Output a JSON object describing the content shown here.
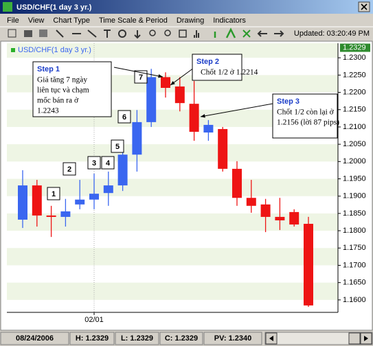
{
  "window": {
    "title": "USD/CHF(1 day 3 yr.)"
  },
  "menu": [
    "File",
    "View",
    "Chart Type",
    "Time Scale & Period",
    "Drawing",
    "Indicators"
  ],
  "toolbar": {
    "updated": "Updated: 03:20:49 PM"
  },
  "chart_data": {
    "type": "candlestick",
    "legend": "USD/CHF(1 day 3 yr.)",
    "last_price": 1.2329,
    "categories": [
      null,
      null,
      null,
      null,
      null,
      "02/01",
      null,
      null,
      null,
      null,
      null,
      null,
      null,
      null,
      null,
      null,
      null,
      null,
      null,
      null,
      null
    ],
    "open": [
      1.1832,
      1.1931,
      1.1844,
      1.184,
      1.1876,
      1.189,
      1.1909,
      1.1931,
      1.202,
      1.2114,
      1.2244,
      1.2217,
      1.2167,
      1.2084,
      1.2094,
      1.1979,
      1.1895,
      1.1876,
      1.184,
      1.1854,
      1.182
    ],
    "high": [
      1.1975,
      1.1947,
      1.1872,
      1.1892,
      1.1947,
      1.1965,
      1.1971,
      1.206,
      1.2149,
      1.2268,
      1.2258,
      1.2244,
      1.2233,
      1.212,
      1.21,
      1.2001,
      1.1947,
      1.1892,
      1.1895,
      1.1862,
      1.184
    ],
    "low": [
      1.1808,
      1.1812,
      1.1782,
      1.1812,
      1.1862,
      1.1862,
      1.1872,
      1.1915,
      1.1971,
      1.21,
      1.2185,
      1.2145,
      1.206,
      1.206,
      1.1971,
      1.1872,
      1.1852,
      1.1796,
      1.1802,
      1.1812,
      1.158
    ],
    "close": [
      1.1931,
      1.1844,
      1.184,
      1.1856,
      1.189,
      1.1907,
      1.1931,
      1.202,
      1.2114,
      1.2244,
      1.2213,
      1.2169,
      1.2086,
      1.2106,
      1.1979,
      1.1895,
      1.1872,
      1.184,
      1.183,
      1.1818,
      1.1584
    ],
    "up_color": "#3a66f0",
    "down_color": "#ee1414",
    "ylim": [
      1.1564,
      1.2342
    ],
    "yticks": [
      {
        "value": 1.16,
        "label": "1.1600"
      },
      {
        "value": 1.165,
        "label": "1.1650"
      },
      {
        "value": 1.17,
        "label": "1.1700"
      },
      {
        "value": 1.175,
        "label": "1.1750"
      },
      {
        "value": 1.18,
        "label": "1.1800"
      },
      {
        "value": 1.185,
        "label": "1.1850"
      },
      {
        "value": 1.19,
        "label": "1.1900"
      },
      {
        "value": 1.195,
        "label": "1.1950"
      },
      {
        "value": 1.2,
        "label": "1.2000"
      },
      {
        "value": 1.205,
        "label": "1.2050"
      },
      {
        "value": 1.21,
        "label": "1.2100"
      },
      {
        "value": 1.215,
        "label": "1.2150"
      },
      {
        "value": 1.22,
        "label": "1.2200"
      },
      {
        "value": 1.225,
        "label": "1.2250"
      },
      {
        "value": 1.23,
        "label": "1.2300"
      }
    ],
    "grid": true,
    "markers": [
      "1",
      "2",
      "3",
      "4",
      "5",
      "6",
      "7"
    ],
    "steps": [
      {
        "title": "Step 1",
        "lines": [
          "Giá tăng 7 ngày",
          "liên tục và chạm",
          "mốc  bán ra    ở",
          "1.2243"
        ]
      },
      {
        "title": "Step 2",
        "lines": [
          "Chốt 1/2 ở 1.2214"
        ]
      },
      {
        "title": "Step 3",
        "lines": [
          "Chốt 1/2 còn lại ở",
          "1.2156 (lời 87 pips)"
        ]
      }
    ]
  },
  "status": [
    "08/24/2006",
    "H: 1.2329",
    "L: 1.2329",
    "C: 1.2329",
    "PV: 1.2340"
  ]
}
